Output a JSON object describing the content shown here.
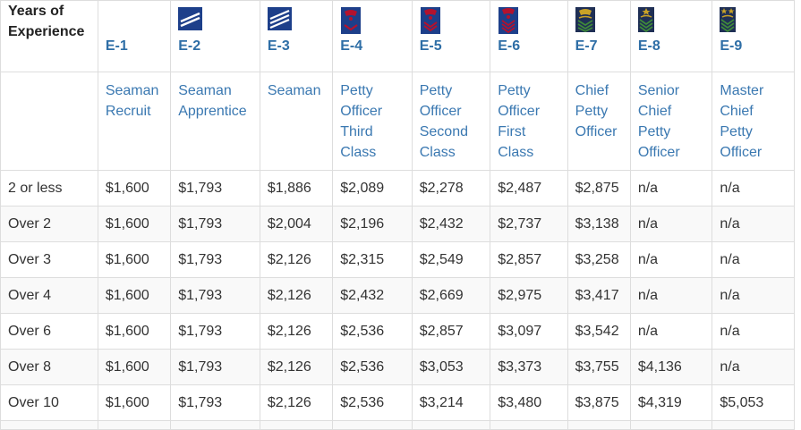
{
  "table": {
    "corner_header": "Years of Experience",
    "grades": [
      {
        "code": "E-1",
        "title": "Seaman Recruit",
        "insignia": "none"
      },
      {
        "code": "E-2",
        "title": "Seaman Apprentice",
        "insignia": "two-stripe-icon"
      },
      {
        "code": "E-3",
        "title": "Seaman",
        "insignia": "three-stripe-icon"
      },
      {
        "code": "E-4",
        "title": "Petty Officer Third Class",
        "insignia": "petty-officer-third-class-icon"
      },
      {
        "code": "E-5",
        "title": "Petty Officer Second Class",
        "insignia": "petty-officer-second-class-icon"
      },
      {
        "code": "E-6",
        "title": "Petty Officer First Class",
        "insignia": "petty-officer-first-class-icon"
      },
      {
        "code": "E-7",
        "title": "Chief Petty Officer",
        "insignia": "chief-petty-officer-icon"
      },
      {
        "code": "E-8",
        "title": "Senior Chief Petty Officer",
        "insignia": "senior-chief-petty-officer-icon"
      },
      {
        "code": "E-9",
        "title": "Master Chief Petty Officer",
        "insignia": "master-chief-petty-officer-icon"
      }
    ],
    "rows": [
      {
        "years": "2 or less",
        "pay": [
          "$1,600",
          "$1,793",
          "$1,886",
          "$2,089",
          "$2,278",
          "$2,487",
          "$2,875",
          "n/a",
          "n/a"
        ]
      },
      {
        "years": "Over 2",
        "pay": [
          "$1,600",
          "$1,793",
          "$2,004",
          "$2,196",
          "$2,432",
          "$2,737",
          "$3,138",
          "n/a",
          "n/a"
        ]
      },
      {
        "years": "Over 3",
        "pay": [
          "$1,600",
          "$1,793",
          "$2,126",
          "$2,315",
          "$2,549",
          "$2,857",
          "$3,258",
          "n/a",
          "n/a"
        ]
      },
      {
        "years": "Over 4",
        "pay": [
          "$1,600",
          "$1,793",
          "$2,126",
          "$2,432",
          "$2,669",
          "$2,975",
          "$3,417",
          "n/a",
          "n/a"
        ]
      },
      {
        "years": "Over 6",
        "pay": [
          "$1,600",
          "$1,793",
          "$2,126",
          "$2,536",
          "$2,857",
          "$3,097",
          "$3,542",
          "n/a",
          "n/a"
        ]
      },
      {
        "years": "Over 8",
        "pay": [
          "$1,600",
          "$1,793",
          "$2,126",
          "$2,536",
          "$3,053",
          "$3,373",
          "$3,755",
          "$4,136",
          "n/a"
        ]
      },
      {
        "years": "Over 10",
        "pay": [
          "$1,600",
          "$1,793",
          "$2,126",
          "$2,536",
          "$3,214",
          "$3,480",
          "$3,875",
          "$4,319",
          "$5,053"
        ]
      }
    ]
  },
  "colors": {
    "link_blue": "#2e6ea6",
    "title_blue": "#3a78b1",
    "stripe_navy": "#1d3f8a",
    "insignia_red": "#b3122e",
    "insignia_gold": "#c9a227",
    "insignia_green": "#3f8a3a"
  }
}
